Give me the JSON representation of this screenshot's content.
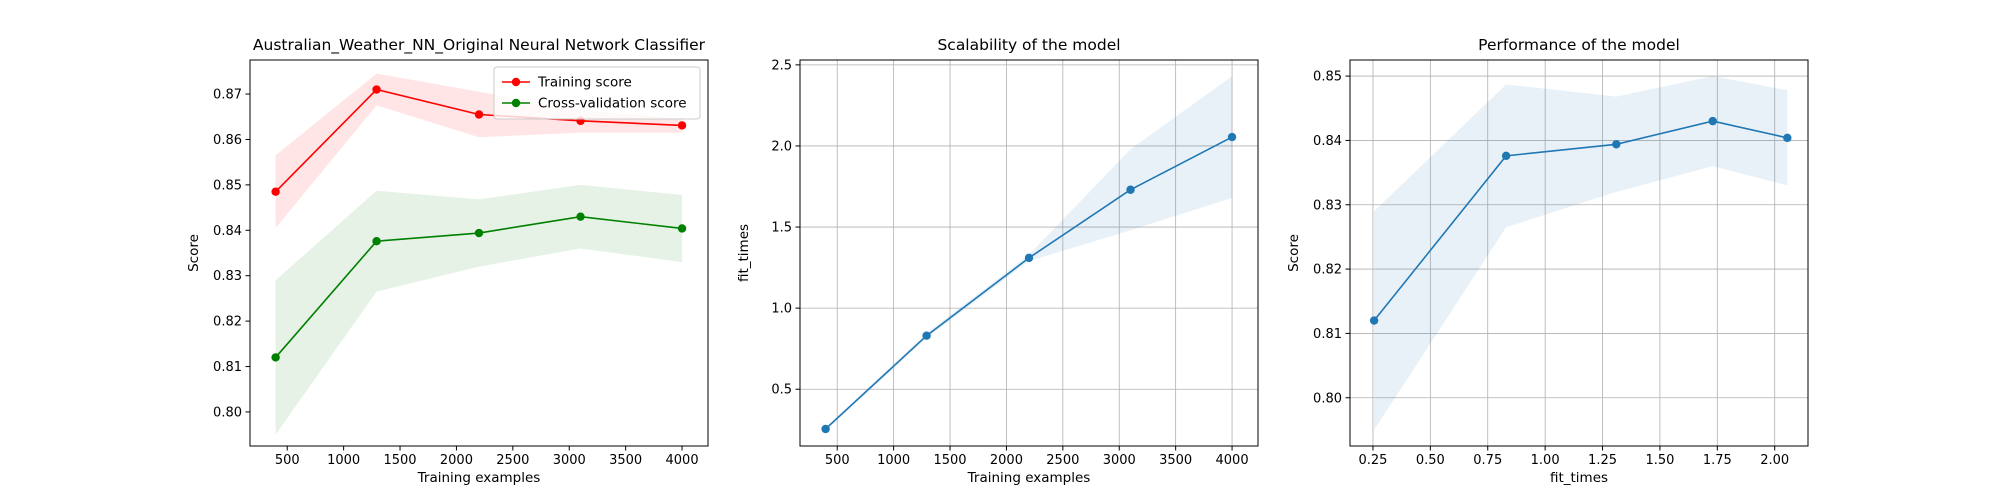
{
  "chart_data": [
    {
      "type": "line",
      "title": "Australian_Weather_NN_Original Neural Network Classifier",
      "xlabel": "Training examples",
      "ylabel": "Score",
      "xlim": [
        170,
        4230
      ],
      "ylim": [
        0.7925,
        0.8775
      ],
      "xticks": [
        500,
        1000,
        1500,
        2000,
        2500,
        3000,
        3500,
        4000
      ],
      "yticks": [
        0.8,
        0.81,
        0.82,
        0.83,
        0.84,
        0.85,
        0.86,
        0.87
      ],
      "ytick_decimals": 2,
      "grid": false,
      "legend": "top-right",
      "series": [
        {
          "name": "Training score",
          "color": "#ff0000",
          "x": [
            397,
            1292,
            2200,
            3100,
            4000
          ],
          "y": [
            0.8485,
            0.871,
            0.8655,
            0.8641,
            0.8631
          ],
          "band_low": [
            0.8405,
            0.8675,
            0.8605,
            0.8615,
            0.8615
          ],
          "band_high": [
            0.8565,
            0.8745,
            0.8705,
            0.8665,
            0.8645
          ]
        },
        {
          "name": "Cross-validation score",
          "color": "#008000",
          "x": [
            397,
            1292,
            2200,
            3100,
            4000
          ],
          "y": [
            0.812,
            0.8376,
            0.8394,
            0.843,
            0.8404
          ],
          "band_low": [
            0.795,
            0.8265,
            0.832,
            0.836,
            0.833
          ],
          "band_high": [
            0.829,
            0.8487,
            0.8468,
            0.85,
            0.8478
          ]
        }
      ]
    },
    {
      "type": "line",
      "title": "Scalability of the model",
      "xlabel": "Training examples",
      "ylabel": "fit_times",
      "xlim": [
        170,
        4230
      ],
      "ylim": [
        0.15,
        2.53
      ],
      "xticks": [
        500,
        1000,
        1500,
        2000,
        2500,
        3000,
        3500,
        4000
      ],
      "yticks": [
        0.5,
        1.0,
        1.5,
        2.0,
        2.5
      ],
      "ytick_decimals": 1,
      "grid": true,
      "series": [
        {
          "color": "#1f77b4",
          "x": [
            397,
            1292,
            2200,
            3100,
            4000
          ],
          "y": [
            0.255,
            0.83,
            1.31,
            1.73,
            2.055
          ],
          "band_low": [
            0.245,
            0.815,
            1.29,
            1.48,
            1.68
          ],
          "band_high": [
            0.265,
            0.845,
            1.33,
            1.98,
            2.43
          ]
        }
      ]
    },
    {
      "type": "line",
      "title": "Performance of the model",
      "xlabel": "fit_times",
      "ylabel": "Score",
      "xlim": [
        0.15,
        2.145
      ],
      "ylim": [
        0.7925,
        0.8525
      ],
      "xticks": [
        0.25,
        0.5,
        0.75,
        1.0,
        1.25,
        1.5,
        1.75,
        2.0
      ],
      "yticks": [
        0.8,
        0.81,
        0.82,
        0.83,
        0.84,
        0.85
      ],
      "xtick_decimals": 2,
      "ytick_decimals": 2,
      "grid": true,
      "series": [
        {
          "color": "#1f77b4",
          "x": [
            0.255,
            0.83,
            1.31,
            1.73,
            2.055
          ],
          "y": [
            0.812,
            0.8376,
            0.8394,
            0.843,
            0.8404
          ],
          "band_low": [
            0.795,
            0.8265,
            0.832,
            0.836,
            0.833
          ],
          "band_high": [
            0.829,
            0.8487,
            0.8468,
            0.85,
            0.8478
          ]
        }
      ]
    }
  ]
}
